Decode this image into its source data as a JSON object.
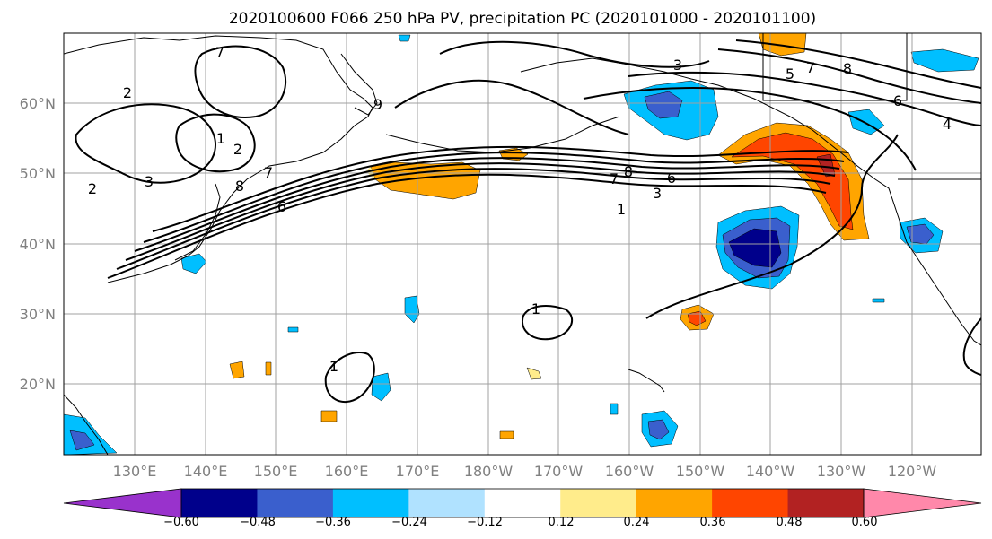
{
  "title": "2020100600 F066 250 hPa PV, precipitation PC (2020101000 - 2020101100)",
  "map": {
    "lat_labels": [
      "60°N",
      "50°N",
      "40°N",
      "30°N",
      "20°N"
    ],
    "lon_labels": [
      "130°E",
      "140°E",
      "150°E",
      "160°E",
      "170°E",
      "180°W",
      "170°W",
      "160°W",
      "150°W",
      "140°W",
      "130°W",
      "120°W"
    ]
  },
  "colorbar": {
    "tick_labels": [
      "−0.60",
      "−0.48",
      "−0.36",
      "−0.24",
      "−0.12",
      "0.12",
      "0.24",
      "0.36",
      "0.48",
      "0.60"
    ],
    "colors": [
      "#9932cc",
      "#00008b",
      "#3a5fcd",
      "#00bfff",
      "#b0e2ff",
      "#ffffff",
      "#ffec8b",
      "#ffa500",
      "#ff4500",
      "#b22222",
      "#ff88aa"
    ]
  },
  "contour_labels": [
    "7",
    "2",
    "1",
    "2",
    "2",
    "3",
    "8",
    "7",
    "6",
    "9",
    "3",
    "5",
    "7",
    "8",
    "6",
    "4",
    "8",
    "7",
    "6",
    "3",
    "1",
    "1",
    "1"
  ]
}
